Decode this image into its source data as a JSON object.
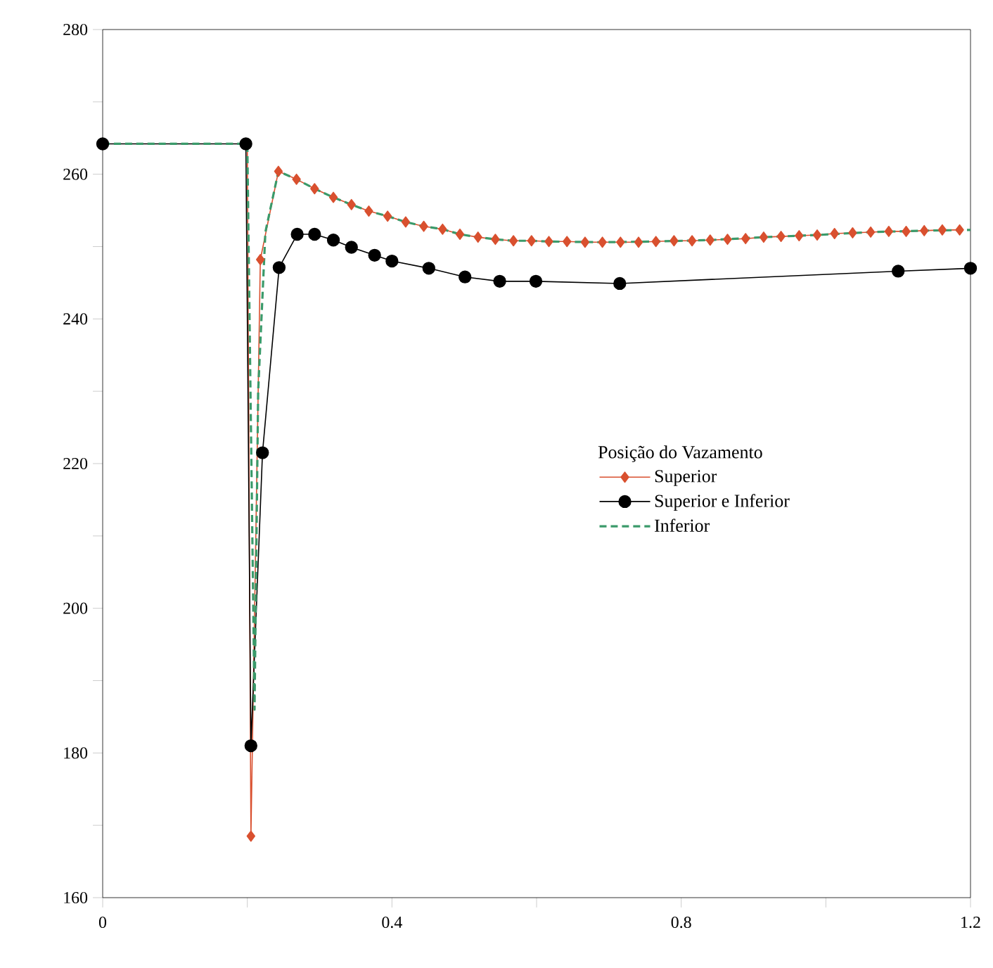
{
  "chart_data": {
    "type": "line",
    "legend_title": "Posição do Vazamento",
    "xlim": [
      0,
      1.2
    ],
    "ylim": [
      160,
      280
    ],
    "xticks": [
      0,
      {
        "value": 0.2,
        "label": null
      },
      0.4,
      {
        "value": 0.6,
        "label": null
      },
      0.8,
      {
        "value": 1.0,
        "label": null
      },
      1.2
    ],
    "yticks": [
      160,
      {
        "value": 170,
        "label": null
      },
      180,
      {
        "value": 190,
        "label": null
      },
      200,
      {
        "value": 210,
        "label": null
      },
      220,
      {
        "value": 230,
        "label": null
      },
      240,
      {
        "value": 250,
        "label": null
      },
      260,
      {
        "value": 270,
        "label": null
      },
      280
    ],
    "legend": "right",
    "grid": false,
    "series": [
      {
        "name": "Superior",
        "color": "#d9502f",
        "marker": "diamond",
        "line_style": "solid",
        "x": [
          0.2,
          0.205,
          0.218,
          0.243,
          0.268,
          0.293,
          0.319,
          0.344,
          0.368,
          0.394,
          0.419,
          0.444,
          0.47,
          0.494,
          0.519,
          0.543,
          0.568,
          0.593,
          0.617,
          0.642,
          0.667,
          0.691,
          0.716,
          0.741,
          0.765,
          0.79,
          0.815,
          0.84,
          0.864,
          0.889,
          0.914,
          0.938,
          0.963,
          0.988,
          1.012,
          1.037,
          1.062,
          1.087,
          1.111,
          1.136,
          1.161,
          1.185
        ],
        "values": [
          264.2,
          168.5,
          248.2,
          260.4,
          259.3,
          258.0,
          256.8,
          255.8,
          254.9,
          254.2,
          253.4,
          252.8,
          252.4,
          251.7,
          251.3,
          251.0,
          250.8,
          250.8,
          250.7,
          250.7,
          250.6,
          250.6,
          250.6,
          250.6,
          250.7,
          250.8,
          250.8,
          250.9,
          251.0,
          251.1,
          251.3,
          251.4,
          251.5,
          251.6,
          251.8,
          251.9,
          252.0,
          252.1,
          252.1,
          252.2,
          252.3,
          252.3
        ]
      },
      {
        "name": "Superior e Inferior",
        "color": "#000000",
        "marker": "circle",
        "line_style": "solid",
        "x": [
          0,
          0.198,
          0.205,
          0.221,
          0.244,
          0.269,
          0.293,
          0.319,
          0.344,
          0.376,
          0.4,
          0.451,
          0.501,
          0.549,
          0.599,
          0.715,
          1.1,
          1.2
        ],
        "values": [
          264.2,
          264.2,
          181,
          221.5,
          247.1,
          251.7,
          251.7,
          250.9,
          249.9,
          248.8,
          248.0,
          247.0,
          245.8,
          245.2,
          245.2,
          244.9,
          246.6,
          247.0
        ]
      },
      {
        "name": "Inferior",
        "color": "#3a9a6a",
        "marker": "none",
        "line_style": "dashed",
        "x": [
          0,
          0.2,
          0.21,
          0.215,
          0.225,
          0.243,
          0.268,
          0.293,
          0.319,
          0.344,
          0.368,
          0.394,
          0.419,
          0.444,
          0.47,
          0.494,
          0.519,
          0.543,
          0.568,
          0.593,
          0.617,
          0.691,
          0.765,
          0.84,
          0.914,
          0.988,
          1.062,
          1.136,
          1.2
        ],
        "values": [
          264.2,
          264.2,
          186,
          230,
          252,
          260.4,
          259.3,
          258.0,
          256.8,
          255.8,
          254.9,
          254.2,
          253.4,
          252.8,
          252.4,
          251.7,
          251.3,
          251.0,
          250.8,
          250.8,
          250.7,
          250.6,
          250.7,
          250.9,
          251.3,
          251.6,
          252.0,
          252.2,
          252.3
        ]
      }
    ]
  }
}
